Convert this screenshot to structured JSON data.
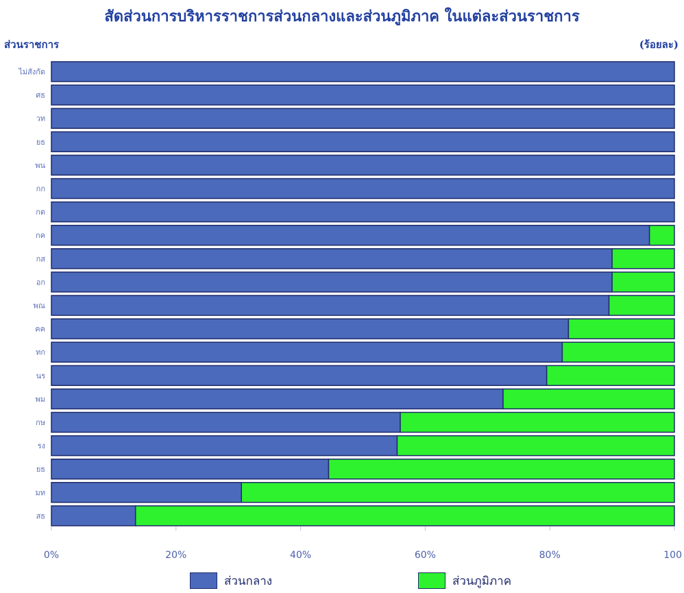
{
  "chart_data": {
    "type": "bar",
    "orientation": "horizontal",
    "stacked": true,
    "title": "สัดส่วนการบริหารราชการส่วนกลางและส่วนภูมิภาค ในแต่ละส่วนราชการ",
    "ylabel": "ส่วนราชการ",
    "unit": "(ร้อยละ)",
    "categories": [
      "ไม่สังกัด",
      "ศธ",
      "วท",
      "ยธ",
      "พน",
      "กก",
      "กต",
      "กค",
      "กส",
      "อก",
      "พณ",
      "คค",
      "ทก",
      "นร",
      "พม",
      "กษ",
      "รง",
      "ยธ",
      "มท",
      "สธ"
    ],
    "series": [
      {
        "name": "ส่วนกลาง",
        "color": "#4b6abb",
        "values": [
          100,
          100,
          100,
          100,
          100,
          100,
          100,
          96,
          90,
          90,
          89.5,
          83,
          82,
          79.5,
          72.5,
          56,
          55.5,
          44.5,
          30.5,
          13.5
        ]
      },
      {
        "name": "ส่วนภูมิภาค",
        "color": "#2ef22e",
        "values": [
          0,
          0,
          0,
          0,
          0,
          0,
          0,
          4,
          10,
          10,
          10.5,
          17,
          18,
          20.5,
          27.5,
          44,
          44.5,
          55.5,
          69.5,
          86.5
        ]
      }
    ],
    "x_ticks": [
      "0%",
      "20%",
      "40%",
      "60%",
      "80%",
      "100"
    ],
    "xlim": [
      0,
      100
    ],
    "grid": false,
    "legend_position": "bottom"
  }
}
